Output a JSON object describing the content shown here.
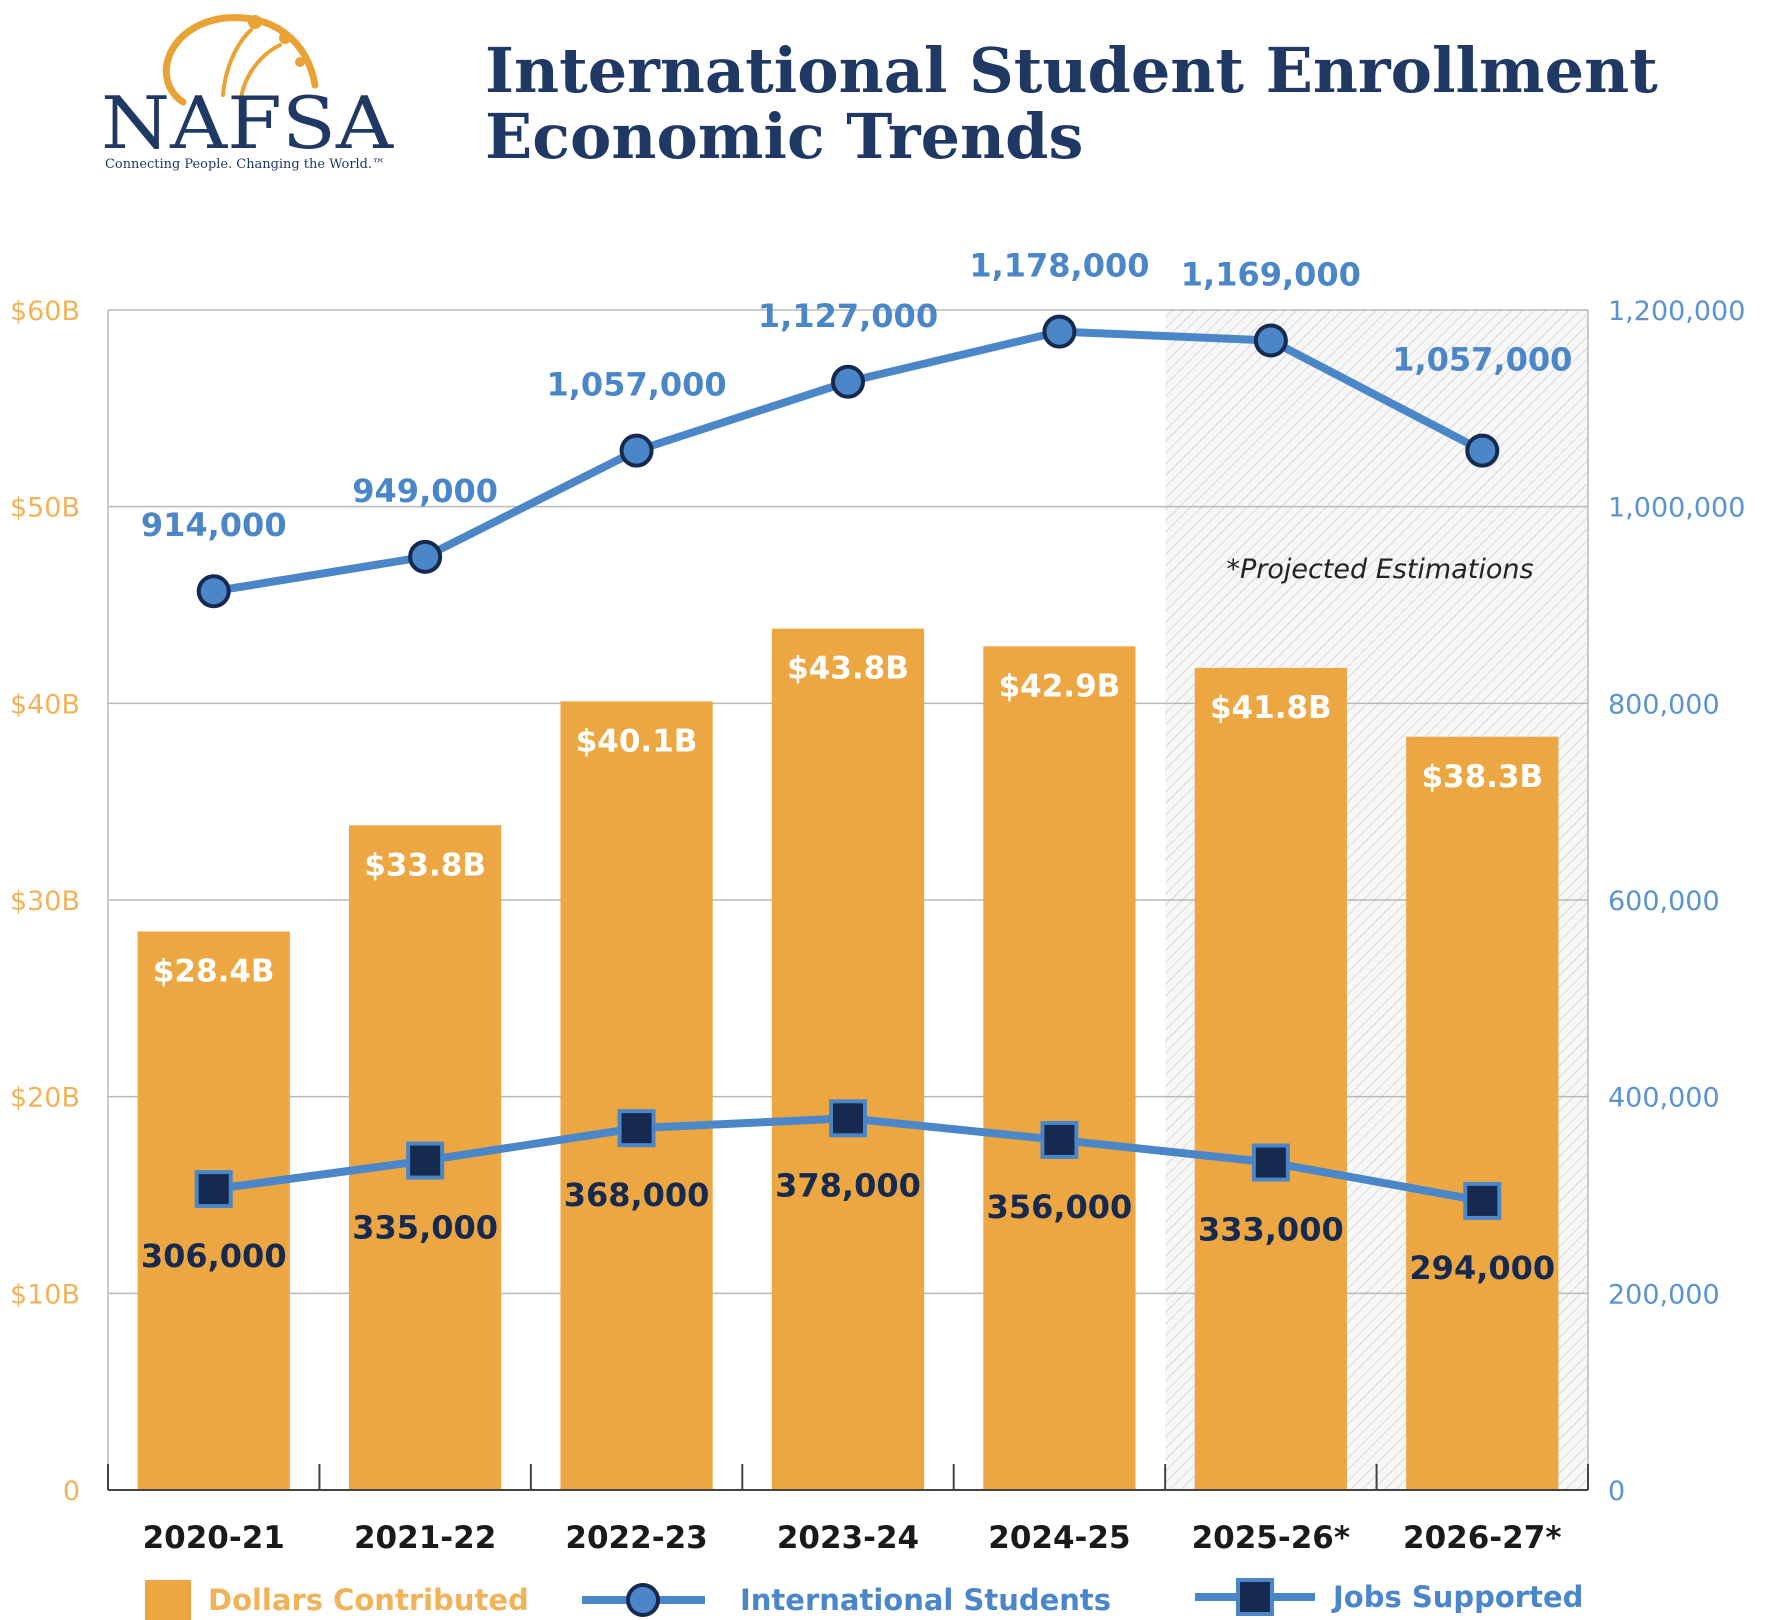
{
  "logo": {
    "text": "NAFSA",
    "tagline": "Connecting People. Changing the World.™"
  },
  "title": {
    "line1": "International Student Enrollment",
    "line2": "Economic Trends"
  },
  "colors": {
    "bar": "#eca742",
    "line": "#4a86c8",
    "marker_dark": "#16294e",
    "left_axis": "#f0b35a",
    "right_axis": "#5a93d0",
    "title": "#1f3864"
  },
  "chart_data": {
    "type": "bar",
    "categories": [
      "2020-21",
      "2021-22",
      "2022-23",
      "2023-24",
      "2024-25",
      "2025-26*",
      "2026-27*"
    ],
    "projected_from_index": 5,
    "note": "*Projected Estimations",
    "left_axis": {
      "ylim": [
        0,
        60
      ],
      "ticks": [
        0,
        10,
        20,
        30,
        40,
        50,
        60
      ],
      "tick_labels": [
        "0",
        "$10B",
        "$20B",
        "$30B",
        "$40B",
        "$50B",
        "$60B"
      ]
    },
    "right_axis": {
      "ylim": [
        0,
        1200000
      ],
      "ticks": [
        0,
        200000,
        400000,
        600000,
        800000,
        1000000,
        1200000
      ],
      "tick_labels": [
        "0",
        "200,000",
        "400,000",
        "600,000",
        "800,000",
        "1,000,000",
        "1,200,000"
      ]
    },
    "grid": true,
    "legend_position": "bottom",
    "series": [
      {
        "name": "Dollars Contributed",
        "kind": "bar",
        "axis": "left",
        "values": [
          28.4,
          33.8,
          40.1,
          43.8,
          42.9,
          41.8,
          38.3
        ],
        "labels": [
          "$28.4B",
          "$33.8B",
          "$40.1B",
          "$43.8B",
          "$42.9B",
          "$41.8B",
          "$38.3B"
        ]
      },
      {
        "name": "International Students",
        "kind": "line",
        "marker": "circle",
        "axis": "right",
        "values": [
          914000,
          949000,
          1057000,
          1127000,
          1178000,
          1169000,
          1057000
        ],
        "labels": [
          "914,000",
          "949,000",
          "1,057,000",
          "1,127,000",
          "1,178,000",
          "1,169,000",
          "1,057,000"
        ]
      },
      {
        "name": "Jobs Supported",
        "kind": "line",
        "marker": "square",
        "axis": "right",
        "values": [
          306000,
          335000,
          368000,
          378000,
          356000,
          333000,
          294000
        ],
        "labels": [
          "306,000",
          "335,000",
          "368,000",
          "378,000",
          "356,000",
          "333,000",
          "294,000"
        ]
      }
    ]
  }
}
